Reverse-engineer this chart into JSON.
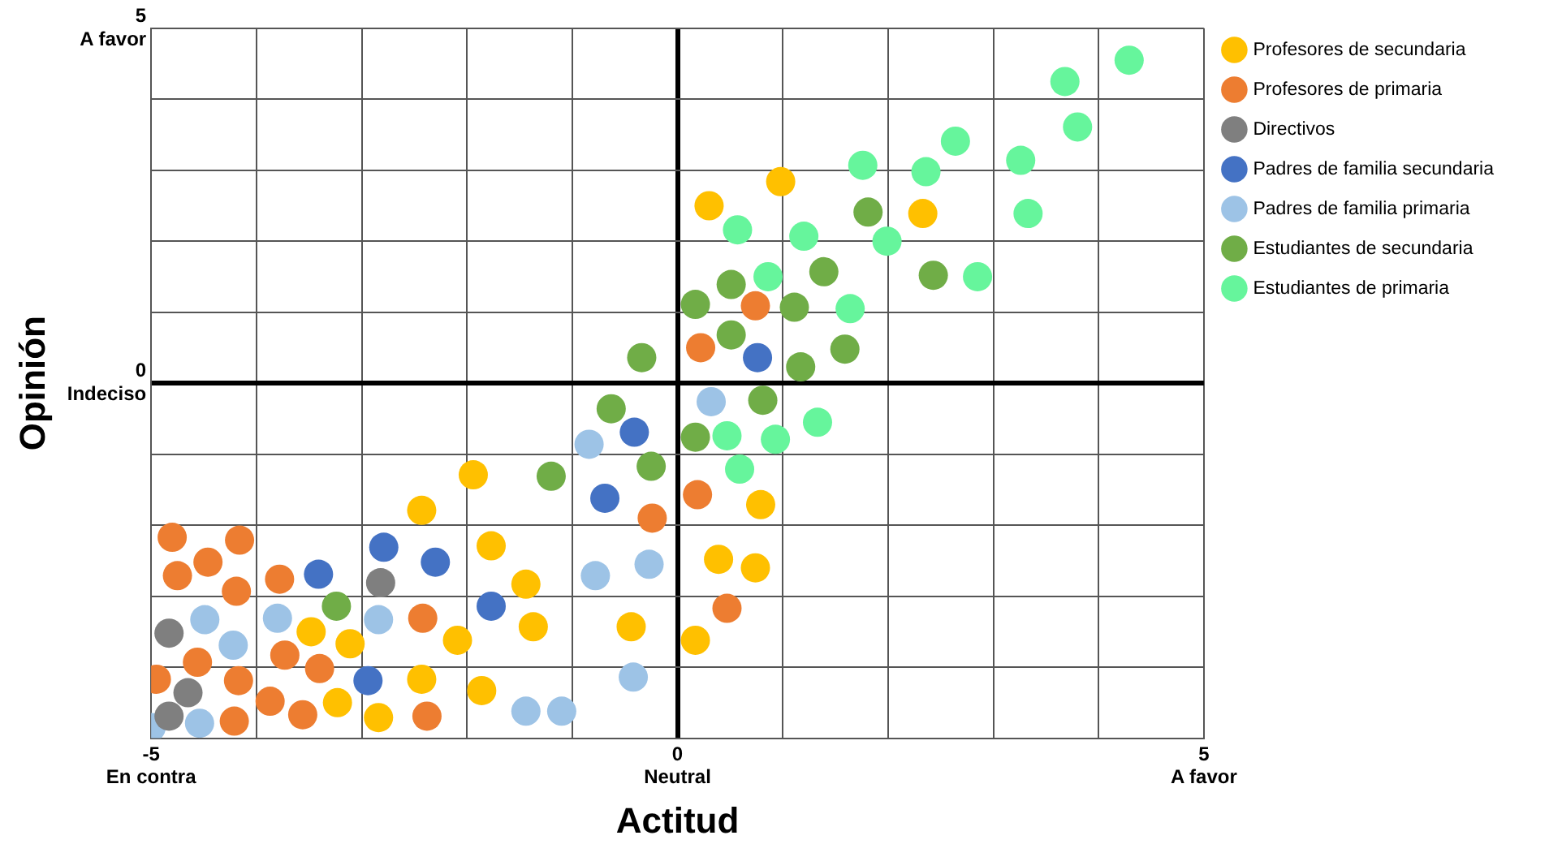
{
  "chart_data": {
    "type": "scatter",
    "xlabel": "Actitud",
    "ylabel": "Opinión",
    "xlim": [
      -5,
      5
    ],
    "ylim": [
      -5,
      5
    ],
    "xticks": [
      {
        "value": -5,
        "label": "-5\nEn contra"
      },
      {
        "value": -4,
        "label": null
      },
      {
        "value": -3,
        "label": null
      },
      {
        "value": -2,
        "label": null
      },
      {
        "value": -1,
        "label": null
      },
      {
        "value": 0,
        "label": "0\nNeutral"
      },
      {
        "value": 1,
        "label": null
      },
      {
        "value": 2,
        "label": null
      },
      {
        "value": 3,
        "label": null
      },
      {
        "value": 4,
        "label": null
      },
      {
        "value": 5,
        "label": "5\nA favor"
      }
    ],
    "yticks": [
      {
        "value": -5,
        "label": null
      },
      {
        "value": -4,
        "label": null
      },
      {
        "value": -3,
        "label": null
      },
      {
        "value": -2,
        "label": null
      },
      {
        "value": -1,
        "label": null
      },
      {
        "value": 0,
        "label": "0\nIndeciso"
      },
      {
        "value": 1,
        "label": null
      },
      {
        "value": 2,
        "label": null
      },
      {
        "value": 3,
        "label": null
      },
      {
        "value": 4,
        "label": null
      },
      {
        "value": 5,
        "label": "5\nA favor"
      }
    ],
    "grid": true,
    "legend": "right",
    "marker": "circle",
    "series": [
      {
        "name": "Profesores de secundaria",
        "color": "#ffc000",
        "x": [
          0.98,
          0.3,
          2.33,
          0.79,
          -1.94,
          -2.43,
          -1.77,
          -1.44,
          0.39,
          0.74,
          -3.48,
          -3.11,
          -2.09,
          -1.37,
          -0.44,
          0.17,
          -2.43,
          -1.86,
          -3.23,
          -2.84
        ],
        "values": [
          2.84,
          2.5,
          2.39,
          -1.71,
          -1.29,
          -1.79,
          -2.29,
          -2.83,
          -2.48,
          -2.6,
          -3.5,
          -3.67,
          -3.62,
          -3.43,
          -3.43,
          -3.62,
          -4.17,
          -4.33,
          -4.5,
          -4.71
        ]
      },
      {
        "name": "Profesores de primaria",
        "color": "#ed7d31",
        "x": [
          0.74,
          0.22,
          0.19,
          -0.24,
          0.47,
          -4.8,
          -4.16,
          -4.46,
          -4.75,
          -4.19,
          -3.78,
          -2.42,
          -4.56,
          -4.95,
          -4.17,
          -3.73,
          -3.4,
          -3.87,
          -3.56,
          -4.21,
          -2.38
        ],
        "values": [
          1.09,
          0.5,
          -1.57,
          -1.9,
          -3.17,
          -2.17,
          -2.21,
          -2.52,
          -2.71,
          -2.93,
          -2.76,
          -3.31,
          -3.93,
          -4.17,
          -4.19,
          -3.83,
          -4.02,
          -4.48,
          -4.67,
          -4.76,
          -4.69
        ]
      },
      {
        "name": "Directivos",
        "color": "#7f7f7f",
        "x": [
          -2.82,
          -4.83,
          -4.65,
          -4.83
        ],
        "values": [
          -2.81,
          -3.52,
          -4.36,
          -4.69
        ]
      },
      {
        "name": "Padres de familia secundaria",
        "color": "#4472c4",
        "x": [
          -3.41,
          -2.79,
          -2.3,
          -1.77,
          -2.94,
          -0.69,
          -0.41,
          0.76
        ],
        "values": [
          -2.69,
          -2.31,
          -2.52,
          -3.14,
          -4.19,
          -1.62,
          -0.69,
          0.36
        ]
      },
      {
        "name": "Padres de familia primaria",
        "color": "#9dc3e6",
        "x": [
          -4.49,
          -4.22,
          -3.8,
          -2.84,
          -0.78,
          -0.27,
          -4.54,
          -5,
          -1.44,
          -1.1,
          -0.42,
          -0.84,
          0.32
        ],
        "values": [
          -3.33,
          -3.69,
          -3.31,
          -3.33,
          -2.71,
          -2.55,
          -4.79,
          -4.85,
          -4.62,
          -4.62,
          -4.14,
          -0.86,
          -0.26
        ]
      },
      {
        "name": "Estudiantes de secundaria",
        "color": "#70ad47",
        "x": [
          -3.24,
          -0.63,
          -1.2,
          -0.25,
          -0.34,
          0.17,
          0.81,
          0.51,
          0.17,
          0.51,
          1.11,
          1.39,
          1.17,
          1.59,
          1.81,
          2.43
        ],
        "values": [
          -3.14,
          -0.36,
          -1.31,
          -1.17,
          0.36,
          -0.76,
          -0.24,
          1.39,
          1.11,
          0.68,
          1.07,
          1.57,
          0.23,
          0.48,
          2.41,
          1.52
        ]
      },
      {
        "name": "Estudiantes de primaria",
        "color": "#66f59c",
        "x": [
          4.29,
          3.68,
          3.8,
          2.64,
          3.26,
          1.76,
          2.36,
          3.33,
          0.57,
          1.2,
          1.99,
          0.86,
          2.85,
          1.64,
          0.47,
          0.93,
          1.33,
          0.59
        ],
        "values": [
          4.55,
          4.25,
          3.61,
          3.41,
          3.14,
          3.07,
          2.98,
          2.39,
          2.16,
          2.07,
          2.0,
          1.5,
          1.5,
          1.05,
          -0.74,
          -0.79,
          -0.55,
          -1.21
        ]
      }
    ]
  }
}
